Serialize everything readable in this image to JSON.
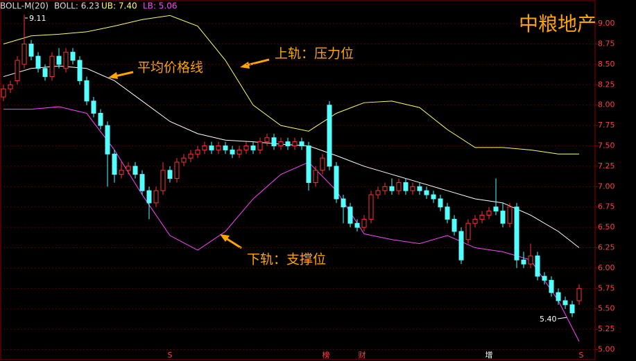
{
  "chart_data": {
    "type": "candlestick",
    "header": {
      "indicator": "BOLL-M(20)",
      "boll": "BOLL: 6.23",
      "ub": "UB: 7.40",
      "lb": "LB: 5.06"
    },
    "title": "中粮地产",
    "annotations": {
      "mid": "平均价格线",
      "upper": "上轨：压力位",
      "lower": "下轨：支撑位",
      "high": "9.11",
      "low": "5.40"
    },
    "markers": [
      "S",
      "榜",
      "财",
      "增",
      "S"
    ],
    "up_color": "#ff3232",
    "down_color": "#54ffff",
    "ylim": [
      4.86,
      9.29
    ],
    "yticks": [
      {
        "value": 5.0,
        "label": "5.00"
      },
      {
        "value": 5.25,
        "label": "5.25"
      },
      {
        "value": 5.5,
        "label": "5.50"
      },
      {
        "value": 5.75,
        "label": "5.75"
      },
      {
        "value": 6.0,
        "label": "6.00"
      },
      {
        "value": 6.25,
        "label": "6.25"
      },
      {
        "value": 6.5,
        "label": "6.50"
      },
      {
        "value": 6.75,
        "label": "6.75"
      },
      {
        "value": 7.0,
        "label": "7.00"
      },
      {
        "value": 7.25,
        "label": "7.25"
      },
      {
        "value": 7.5,
        "label": "7.50"
      },
      {
        "value": 7.75,
        "label": "7.75"
      },
      {
        "value": 8.0,
        "label": "8.00"
      },
      {
        "value": 8.25,
        "label": "8.25"
      },
      {
        "value": 8.5,
        "label": "8.50"
      },
      {
        "value": 8.75,
        "label": "8.75"
      },
      {
        "value": 9.0,
        "label": "9.00"
      }
    ],
    "open": [
      8.1,
      8.2,
      8.3,
      8.5,
      8.75,
      8.6,
      8.45,
      8.35,
      8.6,
      8.45,
      8.65,
      8.55,
      8.3,
      8.05,
      7.9,
      7.75,
      7.4,
      7.15,
      7.2,
      7.25,
      7.15,
      6.95,
      6.8,
      6.95,
      7.2,
      7.1,
      7.3,
      7.35,
      7.4,
      7.45,
      7.5,
      7.45,
      7.5,
      7.45,
      7.4,
      7.45,
      7.5,
      7.45,
      7.55,
      7.6,
      7.5,
      7.55,
      7.5,
      7.55,
      7.5,
      7.05,
      7.2,
      8.0,
      7.25,
      6.85,
      6.75,
      6.55,
      6.5,
      6.6,
      6.9,
      6.95,
      7.0,
      6.95,
      7.05,
      6.95,
      7.0,
      6.95,
      6.9,
      6.85,
      6.75,
      6.6,
      6.45,
      6.35,
      6.55,
      6.6,
      6.65,
      6.75,
      6.7,
      6.55,
      6.75,
      6.1,
      6.05,
      6.15,
      5.9,
      5.85,
      5.7,
      5.6,
      5.55,
      5.6
    ],
    "high": [
      8.25,
      8.3,
      8.6,
      9.11,
      8.8,
      8.65,
      8.5,
      8.65,
      8.7,
      8.7,
      8.7,
      8.6,
      8.35,
      8.1,
      7.95,
      7.8,
      7.45,
      7.3,
      7.3,
      7.3,
      7.2,
      7.0,
      7.0,
      7.3,
      7.25,
      7.35,
      7.4,
      7.45,
      7.5,
      7.55,
      7.55,
      7.55,
      7.55,
      7.5,
      7.5,
      7.55,
      7.55,
      7.6,
      7.65,
      7.65,
      7.6,
      7.6,
      7.6,
      7.6,
      7.55,
      7.25,
      7.4,
      8.05,
      7.3,
      6.9,
      6.8,
      6.6,
      6.65,
      6.95,
      7.0,
      7.05,
      7.1,
      7.1,
      7.1,
      7.05,
      7.05,
      7.0,
      6.95,
      6.9,
      6.8,
      6.65,
      6.5,
      6.6,
      6.65,
      6.7,
      6.75,
      7.1,
      6.8,
      6.8,
      6.8,
      6.2,
      6.3,
      6.2,
      5.95,
      5.9,
      5.75,
      5.65,
      5.6,
      5.8
    ],
    "low": [
      8.05,
      8.15,
      8.25,
      8.45,
      8.55,
      8.4,
      8.3,
      8.3,
      8.45,
      8.4,
      8.5,
      8.25,
      8.0,
      7.85,
      7.7,
      7.0,
      7.05,
      7.1,
      7.15,
      7.1,
      6.9,
      6.6,
      6.75,
      6.9,
      7.05,
      7.05,
      7.25,
      7.3,
      7.35,
      7.4,
      7.4,
      7.4,
      7.4,
      7.35,
      7.35,
      7.4,
      7.4,
      7.4,
      7.5,
      7.45,
      7.45,
      7.45,
      7.45,
      7.45,
      6.95,
      7.0,
      7.15,
      7.2,
      6.8,
      6.55,
      6.5,
      6.45,
      6.45,
      6.55,
      6.85,
      6.9,
      6.9,
      6.9,
      6.9,
      6.9,
      6.9,
      6.85,
      6.8,
      6.7,
      6.55,
      6.4,
      6.05,
      6.3,
      6.5,
      6.55,
      6.6,
      6.65,
      6.5,
      6.5,
      6.0,
      6.0,
      6.0,
      5.85,
      5.8,
      5.65,
      5.55,
      5.5,
      5.4,
      5.55
    ],
    "close": [
      8.2,
      8.25,
      8.55,
      8.75,
      8.6,
      8.45,
      8.35,
      8.6,
      8.5,
      8.65,
      8.55,
      8.3,
      8.05,
      7.9,
      7.75,
      7.4,
      7.15,
      7.2,
      7.25,
      7.15,
      6.95,
      6.8,
      6.95,
      7.2,
      7.1,
      7.3,
      7.35,
      7.4,
      7.45,
      7.5,
      7.45,
      7.5,
      7.45,
      7.4,
      7.45,
      7.5,
      7.45,
      7.55,
      7.6,
      7.5,
      7.55,
      7.5,
      7.55,
      7.5,
      7.05,
      7.2,
      7.35,
      7.25,
      6.85,
      6.75,
      6.55,
      6.5,
      6.6,
      6.9,
      6.95,
      7.0,
      6.95,
      7.05,
      6.95,
      7.0,
      6.95,
      6.9,
      6.85,
      6.75,
      6.6,
      6.45,
      6.1,
      6.55,
      6.6,
      6.65,
      6.7,
      6.7,
      6.55,
      6.75,
      6.1,
      6.05,
      6.15,
      5.9,
      5.85,
      5.7,
      5.6,
      5.55,
      5.45,
      5.75
    ],
    "bands": {
      "x": [
        0,
        4,
        8,
        12,
        16,
        20,
        24,
        28,
        32,
        36,
        40,
        44,
        48,
        52,
        56,
        60,
        64,
        68,
        72,
        76,
        80,
        83
      ],
      "series": [
        {
          "color": "#ffff66",
          "values": [
            8.75,
            8.85,
            8.87,
            8.9,
            8.97,
            9.05,
            9.1,
            8.97,
            8.55,
            8.0,
            7.75,
            7.68,
            7.9,
            8.03,
            8.05,
            7.97,
            7.7,
            7.48,
            7.48,
            7.45,
            7.4,
            7.4
          ]
        },
        {
          "color": "#ffffff",
          "values": [
            8.35,
            8.45,
            8.48,
            8.45,
            8.3,
            8.05,
            7.8,
            7.65,
            7.57,
            7.55,
            7.52,
            7.5,
            7.38,
            7.25,
            7.15,
            7.05,
            6.95,
            6.85,
            6.8,
            6.65,
            6.45,
            6.25
          ]
        },
        {
          "color": "#ff44ff",
          "values": [
            7.95,
            7.95,
            7.98,
            7.9,
            7.45,
            6.9,
            6.4,
            6.22,
            6.45,
            6.85,
            7.15,
            7.3,
            6.95,
            6.42,
            6.35,
            6.3,
            6.4,
            6.25,
            6.2,
            6.1,
            5.6,
            5.1
          ]
        }
      ]
    }
  }
}
